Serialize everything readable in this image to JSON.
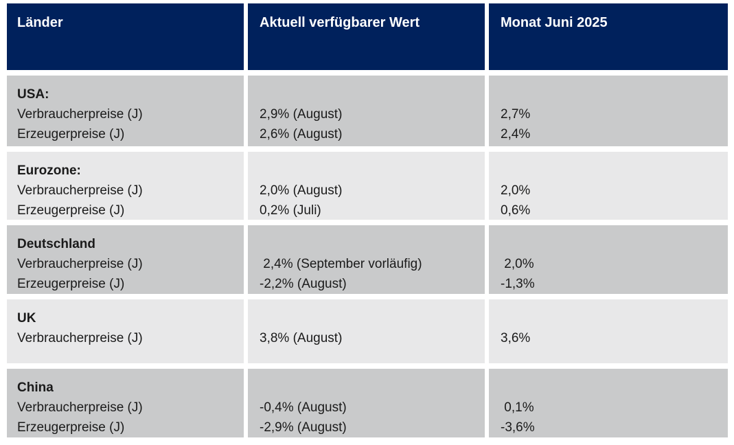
{
  "colors": {
    "header_background": "#00215c",
    "header_text": "#ffffff",
    "row_shade_dark": "#c9cacb",
    "row_shade_light": "#e8e8e9",
    "body_text": "#1a1a1a"
  },
  "header": {
    "countries": "Länder",
    "current_value": "Aktuell verfügbarer Wert",
    "month": "Monat Juni 2025"
  },
  "rows": [
    {
      "country": "USA:",
      "metrics": "Verbraucherpreise (J)\nErzeugerpreise (J)",
      "current": "2,9% (August)\n2,6% (August)",
      "june": "2,7%\n2,4%"
    },
    {
      "country": "Eurozone:",
      "metrics": "Verbraucherpreise (J)\nErzeugerpreise (J)",
      "current": "2,0% (August)\n0,2% (Juli)",
      "june": "2,0%\n0,6%"
    },
    {
      "country": "Deutschland",
      "metrics": "Verbraucherpreise (J)\nErzeugerpreise (J)",
      "current": " 2,4% (September vorläufig)\n-2,2% (August)",
      "june": " 2,0%\n-1,3%"
    },
    {
      "country": "UK",
      "metrics": "Verbraucherpreise (J)",
      "current": "3,8% (August)",
      "june": "3,6%"
    },
    {
      "country": "China",
      "metrics": "Verbraucherpreise (J)\nErzeugerpreise (J)",
      "current": "-0,4% (August)\n-2,9% (August)",
      "june": " 0,1%\n-3,6%"
    }
  ]
}
